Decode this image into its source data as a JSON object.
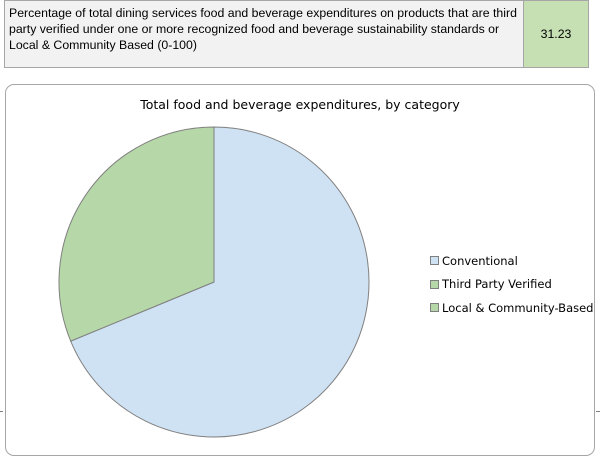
{
  "summary": {
    "label": "Percentage of total dining services food and beverage expenditures on products that are third party verified under one or more recognized food and beverage sustainability standards or Local & Community Based (0-100)",
    "value": "31.23"
  },
  "colors": {
    "conventional": "#cfe2f3",
    "third_party": "#b6d7a8",
    "local": "#b6d7a8",
    "value_cell": "#c6e0b4",
    "label_cell": "#f2f2f2",
    "slice_stroke": "#808080"
  },
  "chart_data": {
    "type": "pie",
    "title": "Total food and beverage expenditures, by category",
    "legend": "right",
    "categories": [
      "Conventional",
      "Third Party Verified",
      "Local & Community-Based"
    ],
    "values": [
      68.77,
      31.23,
      0
    ]
  }
}
